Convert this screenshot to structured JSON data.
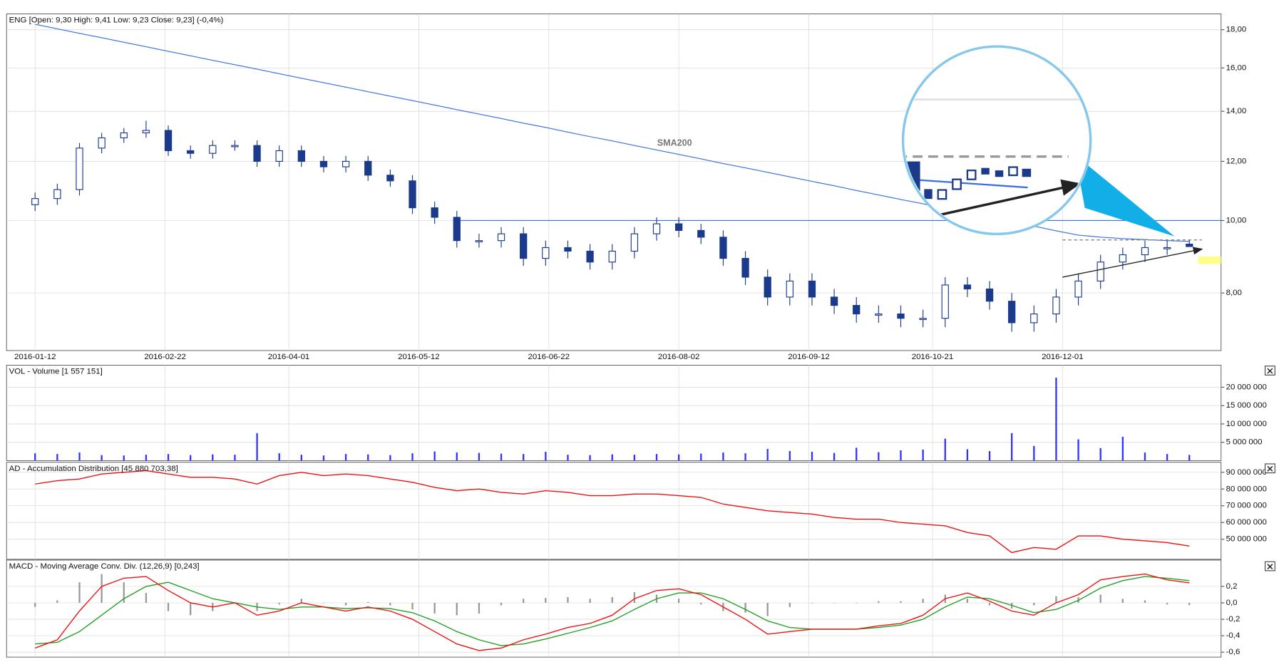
{
  "chart_data": [
    {
      "type": "candlestick",
      "title": "ENG [Open: 9,30  High: 9,41  Low: 9,23  Close: 9,23] (-0,4%)",
      "x": [
        "2016-01-12",
        "2016-01-19",
        "2016-01-26",
        "2016-02-02",
        "2016-02-09",
        "2016-02-16",
        "2016-02-23",
        "2016-03-01",
        "2016-03-08",
        "2016-03-15",
        "2016-03-22",
        "2016-03-29",
        "2016-04-05",
        "2016-04-12",
        "2016-04-19",
        "2016-04-26",
        "2016-05-03",
        "2016-05-10",
        "2016-05-17",
        "2016-05-24",
        "2016-05-31",
        "2016-06-07",
        "2016-06-14",
        "2016-06-21",
        "2016-06-28",
        "2016-07-05",
        "2016-07-12",
        "2016-07-19",
        "2016-07-26",
        "2016-08-02",
        "2016-08-09",
        "2016-08-16",
        "2016-08-23",
        "2016-08-30",
        "2016-09-06",
        "2016-09-13",
        "2016-09-20",
        "2016-09-27",
        "2016-10-04",
        "2016-10-11",
        "2016-10-18",
        "2016-10-25",
        "2016-11-01",
        "2016-11-08",
        "2016-11-15",
        "2016-11-22",
        "2016-11-29",
        "2016-12-06",
        "2016-12-13",
        "2016-12-20",
        "2016-12-27",
        "2017-01-03",
        "2017-01-10"
      ],
      "open": [
        10.5,
        10.7,
        11.0,
        12.5,
        12.9,
        13.1,
        13.2,
        12.4,
        12.3,
        12.6,
        12.6,
        12.0,
        12.4,
        12.0,
        11.8,
        12.0,
        11.5,
        11.3,
        10.4,
        10.1,
        9.4,
        9.4,
        9.6,
        8.9,
        9.2,
        9.1,
        8.8,
        9.1,
        9.6,
        9.9,
        9.7,
        9.5,
        8.9,
        8.4,
        7.9,
        8.3,
        7.9,
        7.7,
        7.5,
        7.5,
        7.4,
        7.4,
        8.2,
        8.1,
        7.8,
        7.3,
        7.5,
        7.9,
        8.3,
        8.8,
        9.0,
        9.2,
        9.3
      ],
      "high": [
        10.9,
        11.2,
        12.7,
        13.1,
        13.3,
        13.6,
        13.4,
        12.6,
        12.8,
        12.8,
        12.8,
        12.6,
        12.6,
        12.2,
        12.2,
        12.2,
        11.7,
        11.5,
        10.6,
        10.3,
        9.6,
        9.8,
        9.8,
        9.4,
        9.4,
        9.3,
        9.3,
        9.8,
        10.1,
        10.1,
        9.9,
        9.7,
        9.1,
        8.6,
        8.5,
        8.5,
        8.1,
        7.9,
        7.7,
        7.7,
        7.6,
        8.4,
        8.4,
        8.3,
        8.0,
        7.7,
        8.1,
        8.5,
        9.0,
        9.2,
        9.4,
        9.4,
        9.41
      ],
      "low": [
        10.3,
        10.5,
        10.8,
        12.3,
        12.7,
        12.9,
        12.2,
        12.1,
        12.1,
        12.4,
        11.8,
        11.8,
        11.8,
        11.6,
        11.6,
        11.3,
        11.1,
        10.2,
        9.9,
        9.2,
        9.2,
        9.2,
        8.7,
        8.7,
        8.9,
        8.6,
        8.6,
        8.9,
        9.4,
        9.5,
        9.3,
        8.7,
        8.2,
        7.7,
        7.7,
        7.7,
        7.5,
        7.3,
        7.3,
        7.2,
        7.2,
        7.2,
        7.9,
        7.6,
        7.1,
        7.1,
        7.3,
        7.7,
        8.1,
        8.6,
        8.8,
        9.0,
        9.23
      ],
      "close": [
        10.7,
        11.0,
        12.5,
        12.9,
        13.1,
        13.2,
        12.4,
        12.3,
        12.6,
        12.6,
        12.0,
        12.4,
        12.0,
        11.8,
        12.0,
        11.5,
        11.3,
        10.4,
        10.1,
        9.4,
        9.4,
        9.6,
        8.9,
        9.2,
        9.1,
        8.8,
        9.1,
        9.6,
        9.9,
        9.7,
        9.5,
        8.9,
        8.4,
        7.9,
        8.3,
        7.9,
        7.7,
        7.5,
        7.5,
        7.4,
        7.4,
        8.2,
        8.1,
        7.8,
        7.3,
        7.5,
        7.9,
        8.3,
        8.8,
        9.0,
        9.2,
        9.2,
        9.23
      ],
      "up_color": "#ffffff",
      "down_color": "#1c3a8c",
      "series": [
        {
          "name": "SMA200",
          "color": "#3a6fe0",
          "values": [
            18.3,
            18.05,
            17.8,
            17.56,
            17.32,
            17.08,
            16.84,
            16.61,
            16.38,
            16.16,
            15.94,
            15.72,
            15.5,
            15.29,
            15.08,
            14.87,
            14.67,
            14.47,
            14.27,
            14.07,
            13.88,
            13.69,
            13.5,
            13.32,
            13.13,
            12.95,
            12.78,
            12.6,
            12.43,
            12.26,
            12.09,
            11.92,
            11.76,
            11.6,
            11.44,
            11.28,
            11.13,
            10.97,
            10.82,
            10.67,
            10.53,
            10.38,
            10.24,
            10.1,
            9.96,
            9.83,
            9.69,
            9.56,
            9.5,
            9.46,
            9.43,
            9.4,
            9.38
          ]
        }
      ],
      "resistance": {
        "value": 10.0,
        "from": "2016-05-24",
        "color": "#3a6fe0"
      },
      "range_top": {
        "value": 9.42,
        "from": "2016-12-01",
        "to": "2017-01-14",
        "color": "#888888"
      },
      "trendline": {
        "from": "2016-12-01",
        "to": "2017-01-14",
        "values": [
          8.4,
          9.16
        ],
        "color": "#222222"
      },
      "highlight_band": {
        "values": [
          8.75,
          8.95
        ],
        "color": "#ffff88"
      },
      "xlim": [
        "2016-01-03",
        "2017-01-20"
      ],
      "xticks": [
        "2016-01-12",
        "2016-02-22",
        "2016-04-01",
        "2016-05-12",
        "2016-06-22",
        "2016-08-02",
        "2016-09-12",
        "2016-10-21",
        "2016-12-01"
      ],
      "log_scale": true,
      "ylim": [
        6.7,
        18.9
      ],
      "yticks": [
        {
          "value": 8,
          "label": "8,00"
        },
        {
          "value": 10,
          "label": "10,00"
        },
        {
          "value": 12,
          "label": "12,00"
        },
        {
          "value": 14,
          "label": "14,00"
        },
        {
          "value": 16,
          "label": "16,00"
        },
        {
          "value": 18,
          "label": "18,00"
        }
      ],
      "grid": true
    },
    {
      "type": "bar",
      "title": "VOL - Volume [1 557 151]",
      "color": "#3030ff",
      "values": [
        2000000,
        1800000,
        2200000,
        1500000,
        1400000,
        1600000,
        1800000,
        1500000,
        1700000,
        1600000,
        7500000,
        2000000,
        1600000,
        1400000,
        1800000,
        1700000,
        1500000,
        2000000,
        2500000,
        2200000,
        2100000,
        1900000,
        1800000,
        2400000,
        1600000,
        1500000,
        1700000,
        1600000,
        1800000,
        1700000,
        1900000,
        2200000,
        2000000,
        3200000,
        2600000,
        2400000,
        2100000,
        3500000,
        2300000,
        2800000,
        3000000,
        6000000,
        3100000,
        2600000,
        7500000,
        4000000,
        22600000,
        5800000,
        3400000,
        6500000,
        2200000,
        1800000,
        1557151
      ],
      "ylim": [
        0,
        26000000
      ],
      "yticks": [
        {
          "value": 5000000,
          "label": "5 000 000"
        },
        {
          "value": 10000000,
          "label": "10 000 000"
        },
        {
          "value": 15000000,
          "label": "15 000 000"
        },
        {
          "value": 20000000,
          "label": "20 000 000"
        }
      ],
      "grid": true
    },
    {
      "type": "line",
      "title": "AD - Accumulation Distribution [45 880 703,38]",
      "color": "#ee1111",
      "values": [
        83000000,
        85000000,
        86000000,
        89000000,
        90000000,
        91000000,
        89000000,
        87000000,
        87000000,
        86000000,
        83000000,
        88000000,
        90000000,
        88000000,
        89000000,
        88000000,
        86000000,
        84000000,
        81000000,
        79000000,
        80000000,
        78000000,
        77000000,
        79000000,
        78000000,
        76000000,
        76000000,
        77000000,
        77000000,
        76000000,
        75000000,
        71000000,
        69000000,
        67000000,
        66000000,
        65000000,
        63000000,
        62000000,
        62000000,
        60000000,
        59000000,
        58000000,
        54000000,
        52000000,
        42000000,
        45000000,
        44000000,
        52000000,
        52000000,
        50000000,
        49000000,
        48000000,
        45880703.38
      ],
      "ylim": [
        38000000,
        96000000
      ],
      "yticks": [
        {
          "value": 50000000,
          "label": "50 000 000"
        },
        {
          "value": 60000000,
          "label": "60 000 000"
        },
        {
          "value": 70000000,
          "label": "70 000 000"
        },
        {
          "value": 80000000,
          "label": "80 000 000"
        },
        {
          "value": 90000000,
          "label": "90 000 000"
        }
      ],
      "grid": true
    },
    {
      "type": "line",
      "title": "MACD - Moving Average Conv. Div. (12,26,9) [0,243]",
      "series": [
        {
          "color": "#ee1111",
          "values": [
            -0.55,
            -0.45,
            -0.1,
            0.2,
            0.3,
            0.32,
            0.15,
            0.0,
            -0.05,
            0.0,
            -0.15,
            -0.1,
            0.0,
            -0.05,
            -0.1,
            -0.05,
            -0.1,
            -0.2,
            -0.35,
            -0.5,
            -0.58,
            -0.55,
            -0.45,
            -0.38,
            -0.3,
            -0.25,
            -0.15,
            0.05,
            0.15,
            0.17,
            0.1,
            -0.05,
            -0.2,
            -0.38,
            -0.35,
            -0.32,
            -0.32,
            -0.32,
            -0.28,
            -0.25,
            -0.15,
            0.05,
            0.12,
            0.02,
            -0.1,
            -0.15,
            0.0,
            0.1,
            0.28,
            0.32,
            0.35,
            0.28,
            0.243
          ]
        },
        {
          "color": "#22a022",
          "values": [
            -0.5,
            -0.48,
            -0.35,
            -0.15,
            0.05,
            0.2,
            0.25,
            0.15,
            0.05,
            0.0,
            -0.05,
            -0.08,
            -0.05,
            -0.05,
            -0.07,
            -0.06,
            -0.07,
            -0.12,
            -0.22,
            -0.35,
            -0.45,
            -0.52,
            -0.5,
            -0.44,
            -0.37,
            -0.3,
            -0.22,
            -0.08,
            0.05,
            0.12,
            0.12,
            0.05,
            -0.08,
            -0.22,
            -0.3,
            -0.32,
            -0.32,
            -0.32,
            -0.3,
            -0.27,
            -0.2,
            -0.05,
            0.07,
            0.05,
            -0.03,
            -0.12,
            -0.08,
            0.03,
            0.18,
            0.27,
            0.32,
            0.3,
            0.27
          ]
        }
      ],
      "histogram": {
        "color": "#999999",
        "values": [
          -0.05,
          0.03,
          0.25,
          0.35,
          0.25,
          0.12,
          -0.1,
          -0.15,
          -0.1,
          0,
          -0.1,
          -0.02,
          0.05,
          0,
          -0.03,
          0.01,
          -0.03,
          -0.08,
          -0.13,
          -0.15,
          -0.13,
          -0.03,
          0.05,
          0.06,
          0.07,
          0.05,
          0.07,
          0.13,
          0.1,
          0.05,
          -0.02,
          -0.1,
          -0.12,
          -0.16,
          -0.05,
          0,
          0,
          0,
          0.02,
          0.02,
          0.05,
          0.1,
          0.05,
          -0.03,
          -0.07,
          -0.03,
          0.08,
          0.07,
          0.1,
          0.05,
          0.03,
          -0.02,
          -0.027
        ]
      },
      "ylim": [
        -0.66,
        0.52
      ],
      "yticks": [
        {
          "value": -0.6,
          "label": "-0,6"
        },
        {
          "value": -0.4,
          "label": "-0,4"
        },
        {
          "value": -0.2,
          "label": "-0,2"
        },
        {
          "value": 0,
          "label": "0,0"
        },
        {
          "value": 0.2,
          "label": "0,2"
        }
      ],
      "grid": true
    }
  ]
}
